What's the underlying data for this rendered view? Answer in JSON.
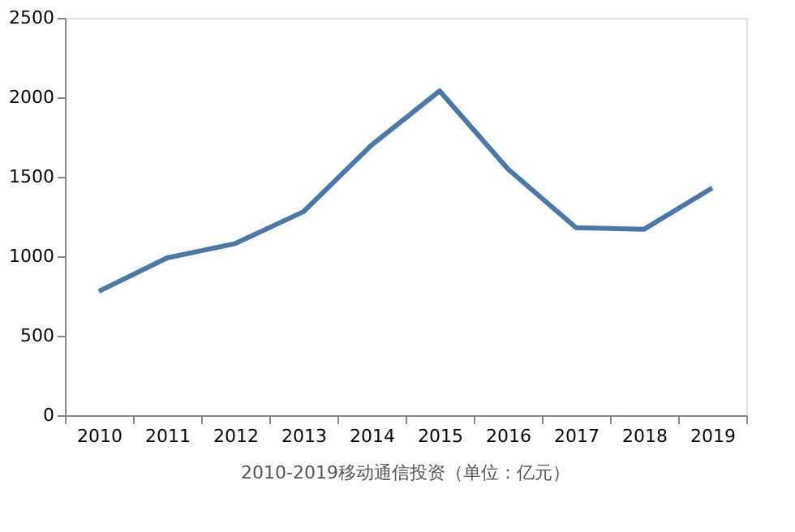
{
  "chart_data": {
    "type": "line",
    "title": "2010-2019移动通信投资（单位：亿元）",
    "categories": [
      "2010",
      "2011",
      "2012",
      "2013",
      "2014",
      "2015",
      "2016",
      "2017",
      "2018",
      "2019"
    ],
    "values": [
      780,
      990,
      1080,
      1280,
      1700,
      2040,
      1550,
      1180,
      1170,
      1430
    ],
    "color": "#4a78a8",
    "ylim": [
      0,
      2500
    ],
    "yticks": [
      0,
      500,
      1000,
      1500,
      2000,
      2500
    ]
  }
}
